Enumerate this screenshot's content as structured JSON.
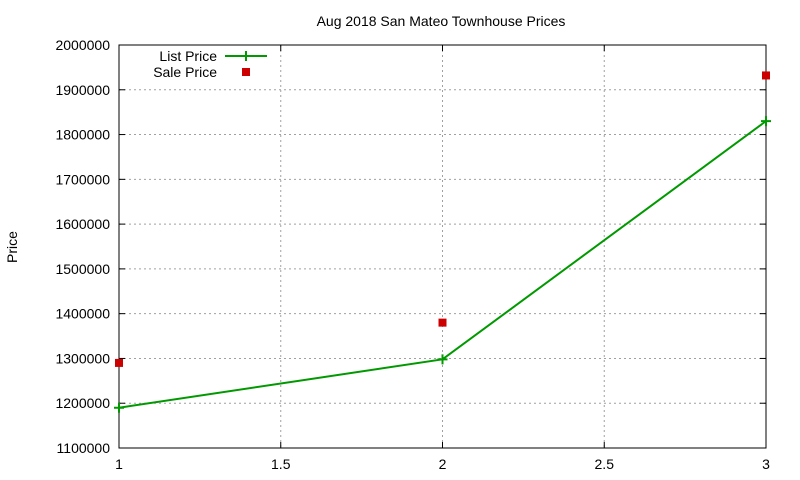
{
  "chart_data": {
    "type": "line",
    "title": "Aug 2018 San Mateo Townhouse Prices",
    "xlabel": "",
    "ylabel": "Price",
    "xlim": [
      1,
      3
    ],
    "ylim": [
      1100000,
      2000000
    ],
    "x_ticks": [
      1,
      1.5,
      2,
      2.5,
      3
    ],
    "x_tick_labels": [
      "1",
      "1.5",
      "2",
      "2.5",
      "3"
    ],
    "y_ticks": [
      1100000,
      1200000,
      1300000,
      1400000,
      1500000,
      1600000,
      1700000,
      1800000,
      1900000,
      2000000
    ],
    "y_tick_labels": [
      "1100000",
      "1200000",
      "1300000",
      "1400000",
      "1500000",
      "1600000",
      "1700000",
      "1800000",
      "1900000",
      "2000000"
    ],
    "grid": true,
    "legend_position": "top-left",
    "series": [
      {
        "name": "List Price",
        "style": "line-with-plus-markers",
        "color": "#009900",
        "x": [
          1,
          2,
          3
        ],
        "y": [
          1190000,
          1298000,
          1830000
        ]
      },
      {
        "name": "Sale Price",
        "style": "square-markers",
        "color": "#cc0000",
        "x": [
          1,
          2,
          3
        ],
        "y": [
          1290000,
          1380000,
          1932000
        ]
      }
    ]
  }
}
